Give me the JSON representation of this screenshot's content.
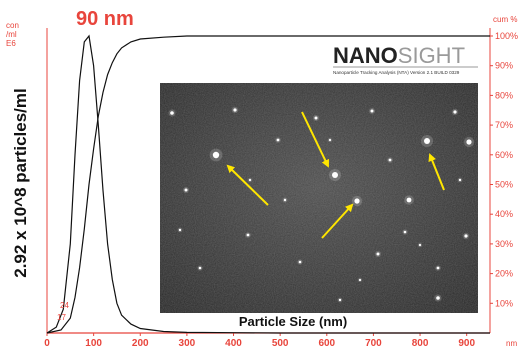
{
  "chart_data": {
    "type": "line",
    "peak_label": "90 nm",
    "ylabel": "2.92 x 10^8 particles/ml",
    "left_axis_unit": [
      "con",
      "/ml",
      "E6"
    ],
    "right_axis_unit": "cum %",
    "x_unit": "nm",
    "xlabel": "Particle Size (nm)",
    "xlim": [
      0,
      950
    ],
    "x_ticks": [
      "0",
      "100",
      "200",
      "300",
      "400",
      "500",
      "600",
      "700",
      "800",
      "900"
    ],
    "right_ticks": [
      "100%",
      "90%",
      "80%",
      "70%",
      "60%",
      "50%",
      "40%",
      "30%",
      "20%",
      "10%"
    ],
    "left_small_labels": [
      "24",
      "17"
    ],
    "series": [
      {
        "x": [
          0,
          20,
          35,
          50,
          60,
          70,
          80,
          90,
          100,
          110,
          120,
          130,
          140,
          150,
          160,
          180,
          200,
          250,
          300,
          400,
          500,
          600,
          700,
          800,
          900,
          950
        ],
        "values": [
          0,
          2,
          8,
          30,
          60,
          85,
          98,
          100,
          90,
          70,
          48,
          30,
          18,
          10,
          6,
          3,
          1.5,
          0.5,
          0.2,
          0.1,
          0,
          0,
          0,
          0,
          0,
          0
        ]
      },
      {
        "x": [
          0,
          30,
          50,
          60,
          70,
          80,
          90,
          100,
          110,
          120,
          130,
          140,
          150,
          160,
          180,
          200,
          250,
          300,
          400,
          950
        ],
        "values": [
          0,
          1,
          5,
          12,
          22,
          35,
          50,
          62,
          73,
          81,
          87,
          91,
          94,
          96,
          98,
          99,
          99.6,
          100,
          100,
          100
        ]
      }
    ]
  },
  "logo": {
    "bold": "NANO",
    "light": "SIGHT",
    "subtitle": "Nanoparticle Tracking Analysis (NTA) Version 2.1 BUILD 0329"
  }
}
